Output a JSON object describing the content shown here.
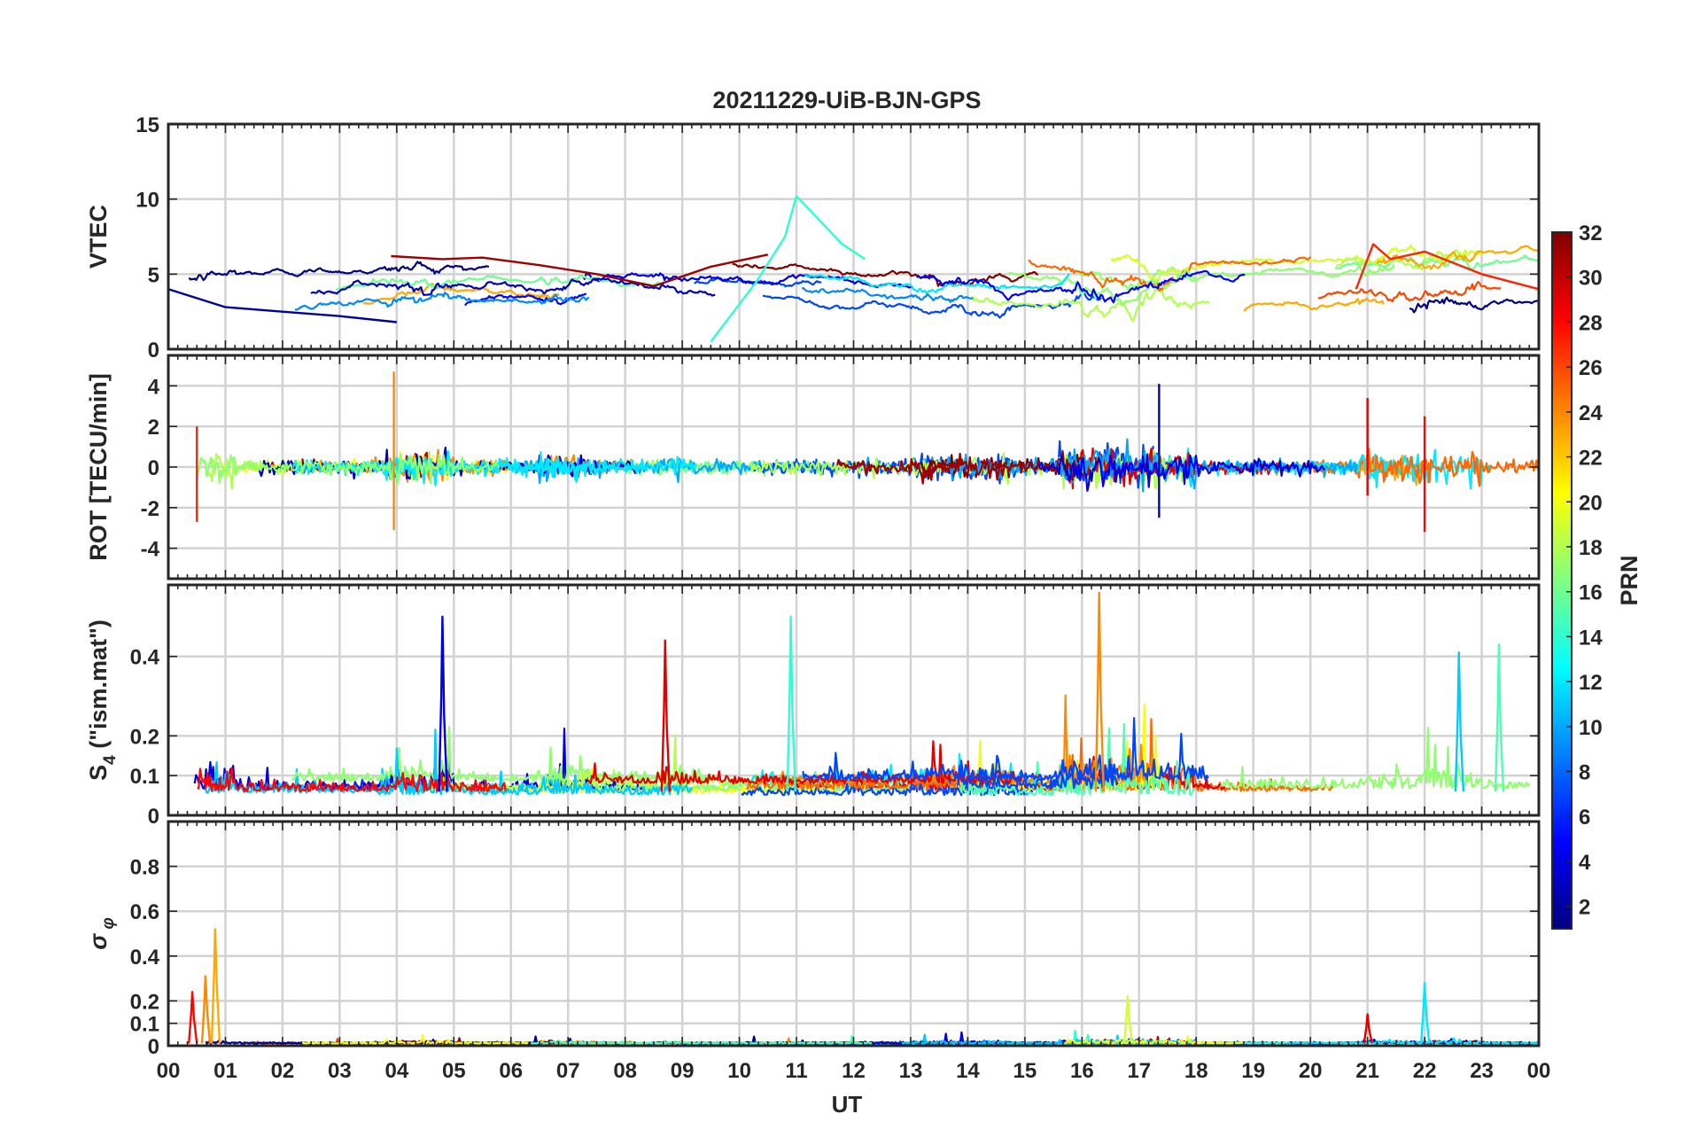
{
  "figure": {
    "title": "20211229-UiB-BJN-GPS",
    "xlabel": "UT"
  },
  "colorbar": {
    "label": "PRN",
    "min": 1,
    "max": 32,
    "ticks": [
      2,
      4,
      6,
      8,
      10,
      12,
      14,
      16,
      18,
      20,
      22,
      24,
      26,
      28,
      30,
      32
    ],
    "colormap": "jet",
    "colors": [
      "#00008f",
      "#0000ff",
      "#00ffff",
      "#ffff00",
      "#ff0000",
      "#800000"
    ]
  },
  "chart_data": [
    {
      "type": "line",
      "panel": "vtec",
      "ylabel": "VTEC",
      "ylim": [
        0,
        15
      ],
      "yticks": [
        0,
        5,
        10,
        15
      ],
      "xlim": [
        0,
        24
      ],
      "x_tick_labels": [
        "00",
        "01",
        "02",
        "03",
        "04",
        "05",
        "06",
        "07",
        "08",
        "09",
        "10",
        "11",
        "12",
        "13",
        "14",
        "15",
        "16",
        "17",
        "18",
        "19",
        "20",
        "21",
        "22",
        "23",
        "00"
      ],
      "grid": true,
      "note_series": "one line per GPS PRN (1-32), colored by PRN",
      "features": [
        {
          "prn": 31,
          "x": [
            3.9,
            4.8,
            5.5,
            6.5,
            7.5,
            8.5,
            9.5,
            10.5
          ],
          "y": [
            6.2,
            6.0,
            6.1,
            5.6,
            5.0,
            4.2,
            5.5,
            6.3
          ]
        },
        {
          "prn": 14,
          "x": [
            9.5,
            9.9,
            10.3,
            10.8,
            11.0,
            11.3,
            11.8,
            12.2
          ],
          "y": [
            0.5,
            2.5,
            4.5,
            7.5,
            10.2,
            9.0,
            7.0,
            6.0
          ]
        },
        {
          "prn": 2,
          "x": [
            0.0,
            1.0,
            2.0,
            3.0,
            4.0
          ],
          "y": [
            4.0,
            2.8,
            2.5,
            2.2,
            1.8
          ]
        },
        {
          "prn": 27,
          "x": [
            20.8,
            21.1,
            21.4,
            22.0,
            23.0,
            24.0
          ],
          "y": [
            4.0,
            7.0,
            6.0,
            6.5,
            5.0,
            4.0
          ]
        }
      ]
    },
    {
      "type": "line",
      "panel": "rot",
      "ylabel": "ROT [TECU/min]",
      "ylim": [
        -5.5,
        5.5
      ],
      "yticks": [
        -4,
        -2,
        0,
        2,
        4
      ],
      "xlim": [
        0,
        24
      ],
      "grid": true,
      "features": [
        {
          "x": 3.95,
          "y_max": 4.7,
          "y_min": -3.1,
          "prn": 24
        },
        {
          "x": 17.35,
          "y_max": 4.1,
          "y_min": -2.5,
          "prn": 3
        },
        {
          "x": 21.0,
          "y_max": 3.4,
          "y_min": -1.4,
          "prn": 29
        },
        {
          "x": 22.0,
          "y_max": 2.5,
          "y_min": -3.2,
          "prn": 28
        },
        {
          "x": 0.5,
          "y_max": 2.0,
          "y_min": -2.7,
          "prn": 27
        }
      ]
    },
    {
      "type": "line",
      "panel": "s4",
      "ylabel": "S4 (\"ism.mat\")",
      "ylim": [
        0,
        0.58
      ],
      "yticks": [
        0,
        0.1,
        0.2,
        0.4
      ],
      "xlim": [
        0,
        24
      ],
      "grid": true,
      "features": [
        {
          "x": 4.8,
          "y": 0.5,
          "prn": 4
        },
        {
          "x": 10.9,
          "y": 0.5,
          "prn": 14
        },
        {
          "x": 16.3,
          "y": 0.56,
          "prn": 24
        },
        {
          "x": 8.7,
          "y": 0.44,
          "prn": 29
        },
        {
          "x": 23.3,
          "y": 0.43,
          "prn": 15
        },
        {
          "x": 22.6,
          "y": 0.41,
          "prn": 11
        }
      ]
    },
    {
      "type": "line",
      "panel": "sigma_phi",
      "ylabel": "σ φ",
      "ylim": [
        0,
        1.0
      ],
      "yticks": [
        0,
        0.1,
        0.2,
        0.4,
        0.6,
        0.8
      ],
      "xlim": [
        0,
        24
      ],
      "grid": true,
      "features": [
        {
          "x": 0.82,
          "y": 0.52,
          "prn": 23
        },
        {
          "x": 0.65,
          "y": 0.31,
          "prn": 24
        },
        {
          "x": 0.42,
          "y": 0.24,
          "prn": 28
        },
        {
          "x": 22.0,
          "y": 0.28,
          "prn": 12
        },
        {
          "x": 16.8,
          "y": 0.22,
          "prn": 19
        },
        {
          "x": 21.0,
          "y": 0.14,
          "prn": 29
        }
      ]
    }
  ]
}
